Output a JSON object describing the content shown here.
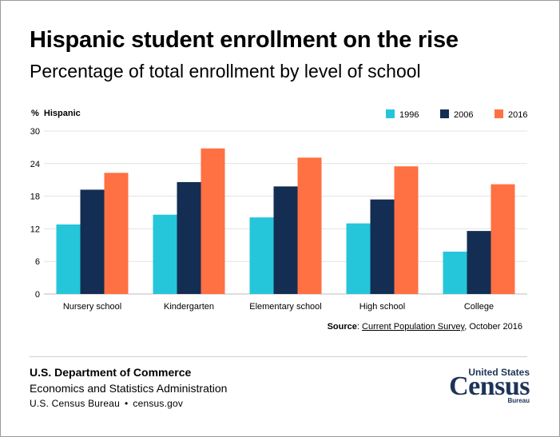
{
  "title": "Hispanic student enrollment on the rise",
  "subtitle": "Percentage of total enrollment by level of school",
  "chart_data": {
    "type": "bar",
    "ylabel": "% Hispanic",
    "ylim": [
      0,
      30
    ],
    "yticks": [
      0,
      6,
      12,
      18,
      24,
      30
    ],
    "grid": true,
    "legend_position": "top-right",
    "categories": [
      "Nursery school",
      "Kindergarten",
      "Elementary school",
      "High school",
      "College"
    ],
    "series": [
      {
        "name": "1996",
        "color": "#26c6da",
        "values": [
          12.8,
          14.6,
          14.1,
          13.0,
          7.8
        ]
      },
      {
        "name": "2006",
        "color": "#142d52",
        "values": [
          19.2,
          20.6,
          19.8,
          17.4,
          11.6
        ]
      },
      {
        "name": "2016",
        "color": "#ff7043",
        "values": [
          22.3,
          26.8,
          25.1,
          23.5,
          20.2
        ]
      }
    ]
  },
  "source": {
    "label": "Source",
    "separator": ": ",
    "link_text": "Current Population Survey",
    "rest": ", October 2016"
  },
  "footer": {
    "department": "U.S. Department of Commerce",
    "administration": "Economics and Statistics Administration",
    "bureau": "U.S. Census Bureau",
    "separator": "•",
    "website": "census.gov"
  },
  "logo": {
    "top": "United States",
    "main": "Census",
    "bottom": "Bureau"
  }
}
